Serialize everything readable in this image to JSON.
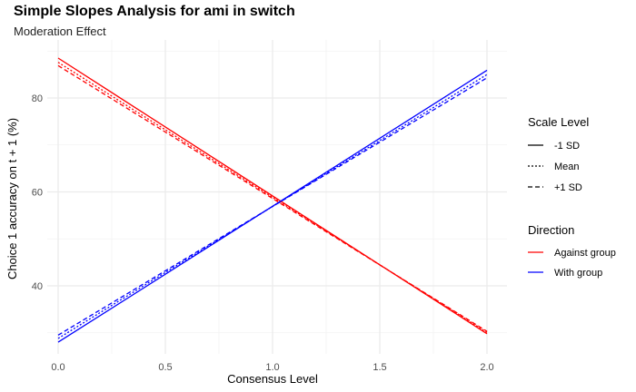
{
  "chart_data": {
    "type": "line",
    "title": "Simple Slopes Analysis for ami in switch",
    "subtitle": "Moderation Effect",
    "xlabel": "Consensus Level",
    "ylabel": "Choice 1 accuracy on t + 1 (%)",
    "xlim": [
      0,
      2
    ],
    "ylim": [
      26,
      91
    ],
    "x_ticks": [
      0.0,
      0.5,
      1.0,
      1.5,
      2.0
    ],
    "x_tick_labels": [
      "0.0",
      "0.5",
      "1.0",
      "1.5",
      "2.0"
    ],
    "y_ticks": [
      40,
      60,
      80
    ],
    "y_tick_labels": [
      "40",
      "60",
      "80"
    ],
    "grid": true,
    "legend_position": "right",
    "legends": [
      {
        "title": "Scale Level",
        "entries": [
          {
            "label": "-1 SD",
            "linetype": "solid"
          },
          {
            "label": "Mean",
            "linetype": "dotted"
          },
          {
            "label": "+1 SD",
            "linetype": "dashed"
          }
        ]
      },
      {
        "title": "Direction",
        "entries": [
          {
            "label": "Against group",
            "color": "#ff0000"
          },
          {
            "label": "With group",
            "color": "#0000ff"
          }
        ]
      }
    ],
    "series": [
      {
        "direction": "Against group",
        "scale": "-1 SD",
        "color": "#ff0000",
        "linetype": "solid",
        "x": [
          0,
          2
        ],
        "y": [
          88.5,
          29.8
        ]
      },
      {
        "direction": "Against group",
        "scale": "Mean",
        "color": "#ff0000",
        "linetype": "dotted",
        "x": [
          0,
          2
        ],
        "y": [
          87.6,
          30.1
        ]
      },
      {
        "direction": "Against group",
        "scale": "+1 SD",
        "color": "#ff0000",
        "linetype": "dashed",
        "x": [
          0,
          2
        ],
        "y": [
          86.9,
          30.3
        ]
      },
      {
        "direction": "With group",
        "scale": "-1 SD",
        "color": "#0000ff",
        "linetype": "solid",
        "x": [
          0,
          2
        ],
        "y": [
          28.0,
          85.9
        ]
      },
      {
        "direction": "With group",
        "scale": "Mean",
        "color": "#0000ff",
        "linetype": "dotted",
        "x": [
          0,
          2
        ],
        "y": [
          28.8,
          85.0
        ]
      },
      {
        "direction": "With group",
        "scale": "+1 SD",
        "color": "#0000ff",
        "linetype": "dashed",
        "x": [
          0,
          2
        ],
        "y": [
          29.5,
          84.3
        ]
      }
    ]
  }
}
